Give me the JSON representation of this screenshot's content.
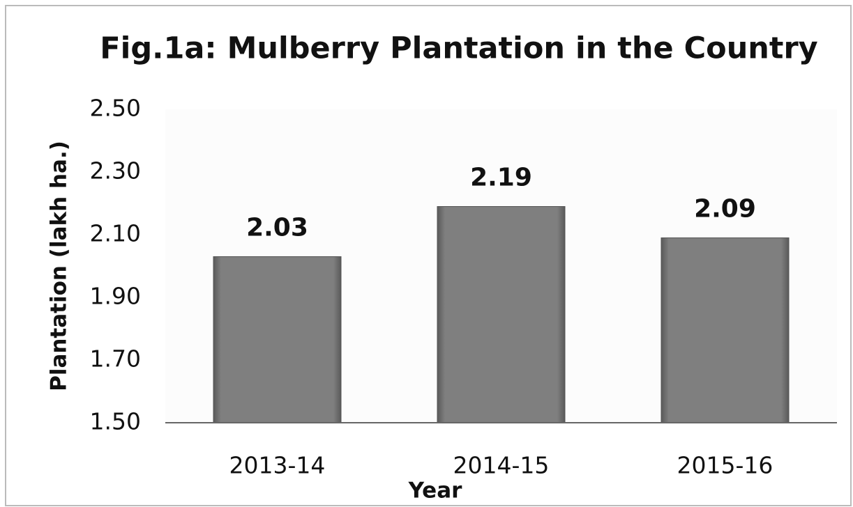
{
  "chart_data": {
    "type": "bar",
    "title": "Fig.1a: Mulberry Plantation in the Country",
    "x_label": "Year",
    "y_label": "Plantation (lakh ha.)",
    "categories": [
      "2013-14",
      "2014-15",
      "2015-16"
    ],
    "values": [
      2.03,
      2.19,
      2.09
    ],
    "color": "#808080",
    "ylim": [
      1.5,
      2.5
    ],
    "yticks": [
      {
        "value": 1.5,
        "label": "1.50"
      },
      {
        "value": 1.7,
        "label": "1.70"
      },
      {
        "value": 1.9,
        "label": "1.90"
      },
      {
        "value": 2.1,
        "label": "2.10"
      },
      {
        "value": 2.3,
        "label": "2.30"
      },
      {
        "value": 2.5,
        "label": "2.50"
      }
    ],
    "grid": false
  }
}
